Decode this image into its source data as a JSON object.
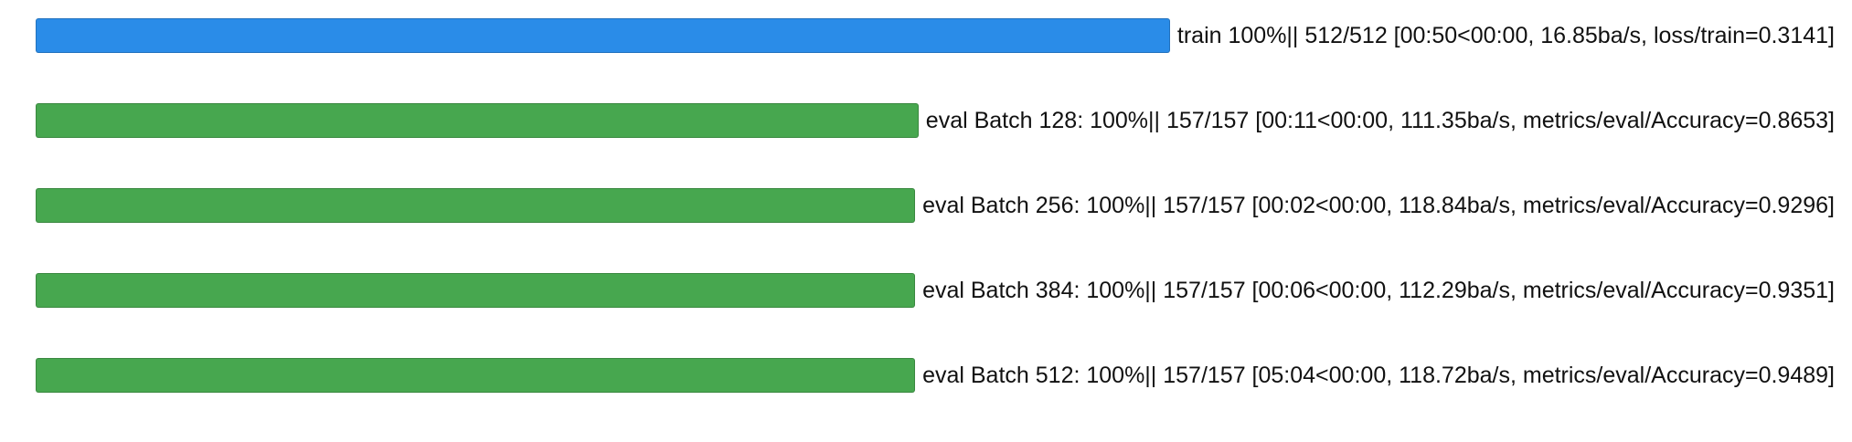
{
  "rows": [
    {
      "text": "train 100%|| 512/512 [00:50<00:00, 16.85ba/s, loss/train=0.3141]",
      "color": "#2a8ce8"
    },
    {
      "text": "eval Batch 128: 100%|| 157/157 [00:11<00:00, 111.35ba/s, metrics/eval/Accuracy=0.8653]",
      "color": "#47a74f"
    },
    {
      "text": "eval Batch 256: 100%|| 157/157 [00:02<00:00, 118.84ba/s, metrics/eval/Accuracy=0.9296]",
      "color": "#47a74f"
    },
    {
      "text": "eval Batch 384: 100%|| 157/157 [00:06<00:00, 112.29ba/s, metrics/eval/Accuracy=0.9351]",
      "color": "#47a74f"
    },
    {
      "text": "eval Batch 512: 100%|| 157/157 [05:04<00:00, 118.72ba/s, metrics/eval/Accuracy=0.9489]",
      "color": "#47a74f"
    }
  ]
}
